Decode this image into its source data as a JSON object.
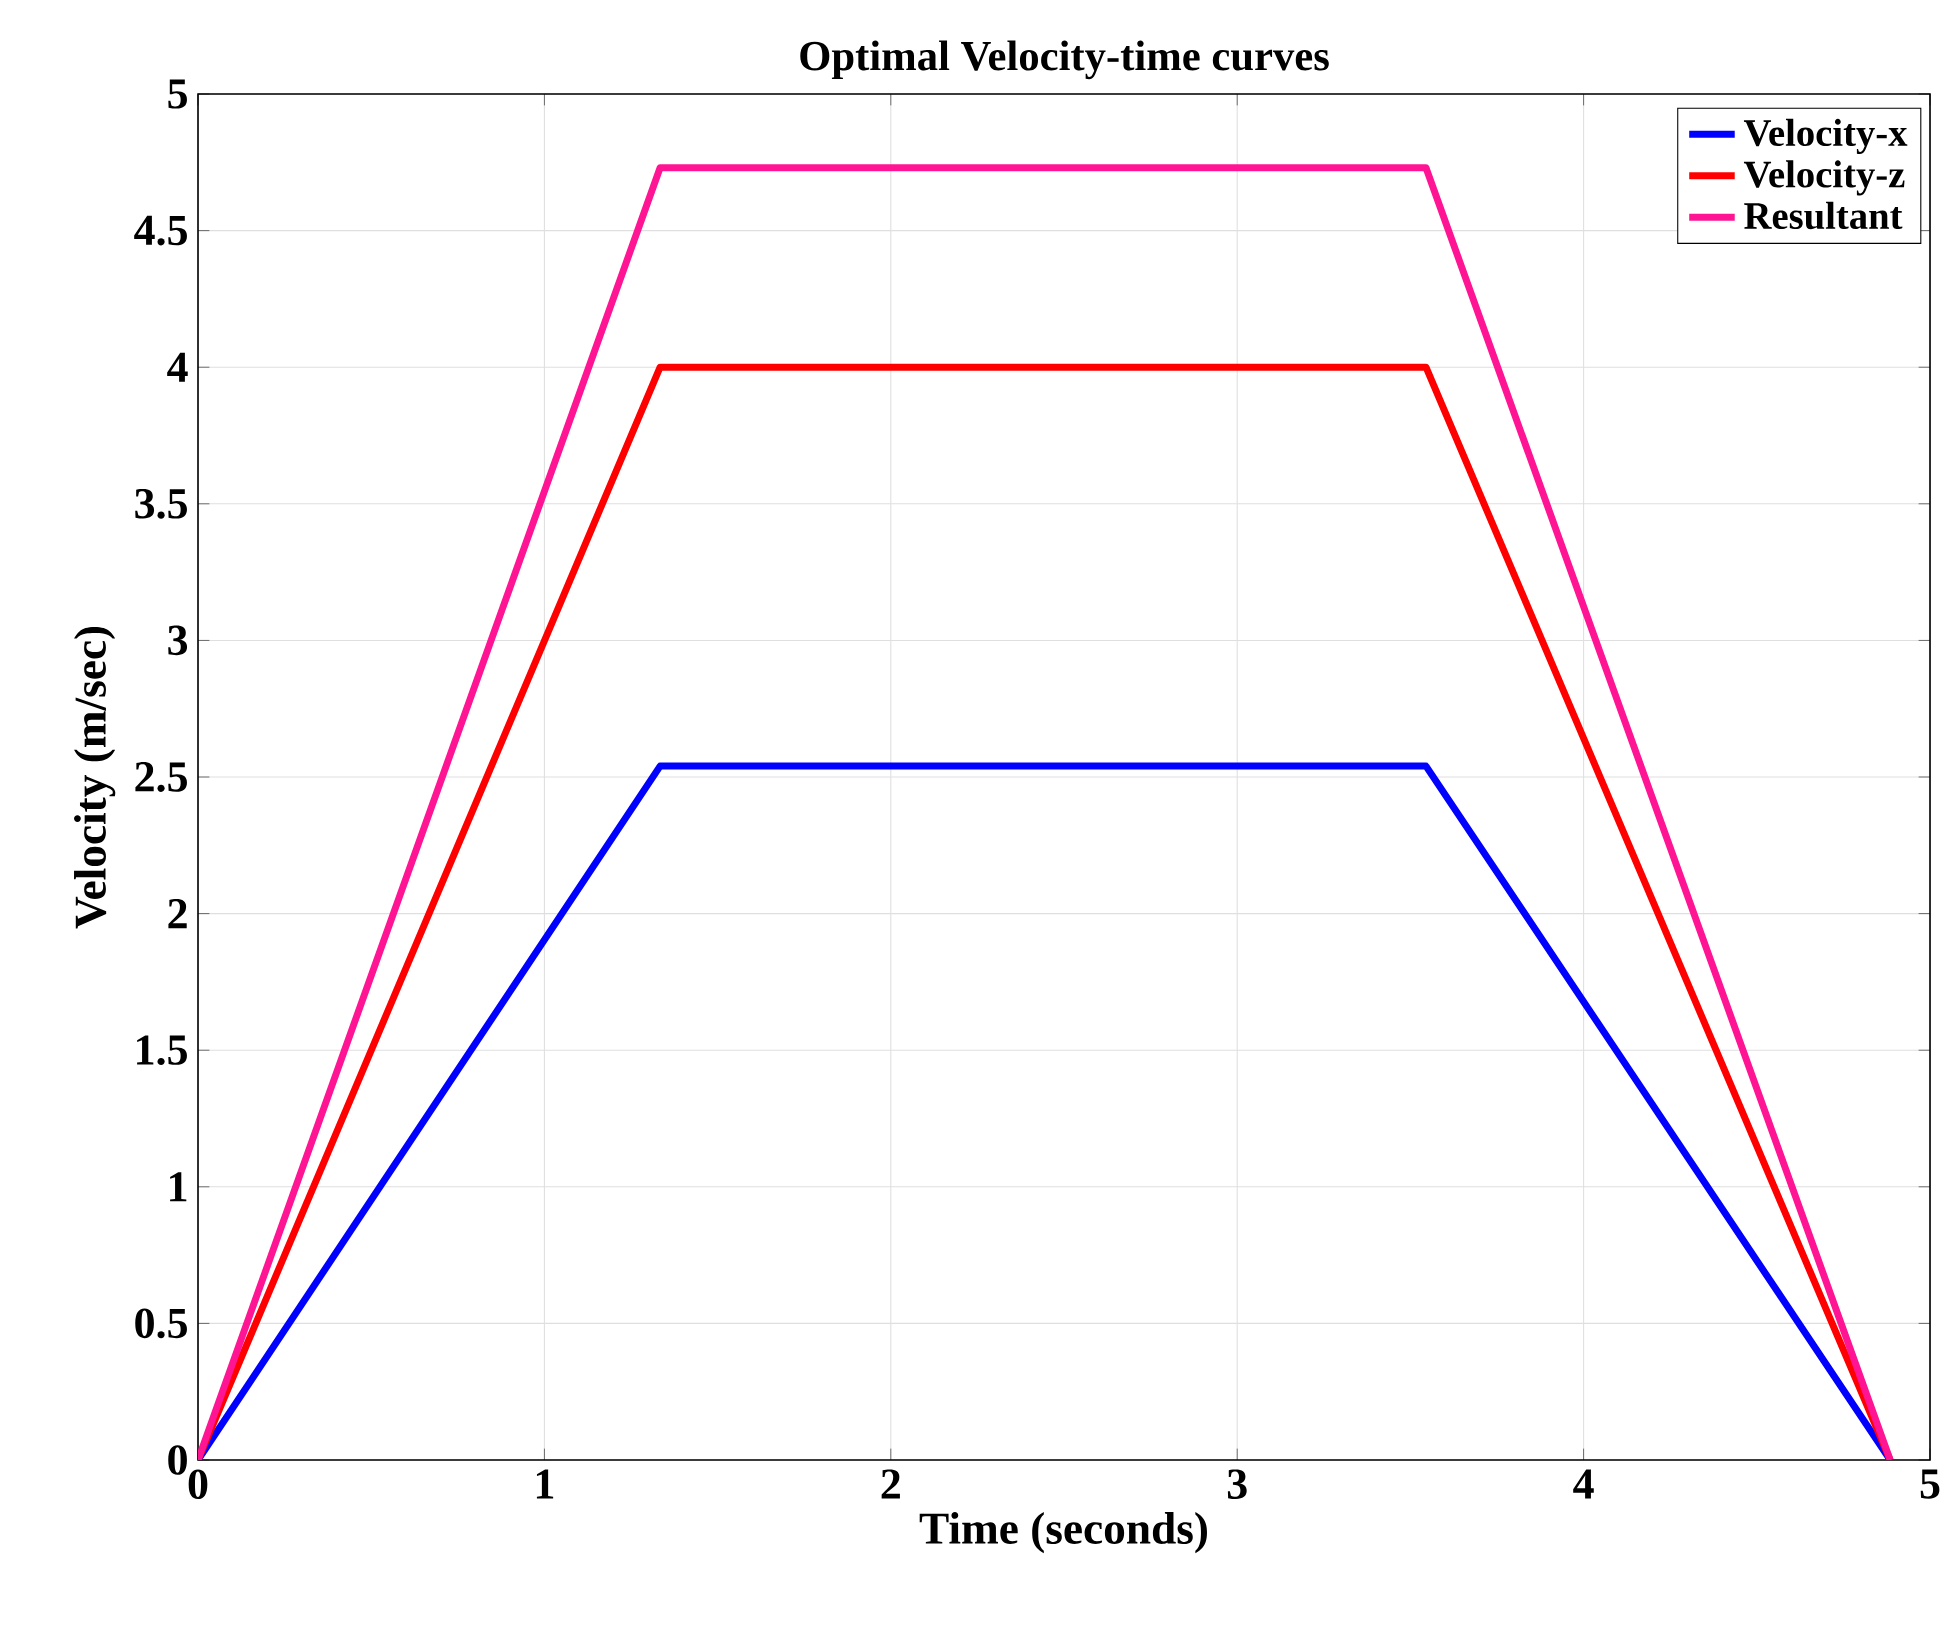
{
  "chart_data": {
    "type": "line",
    "title": "Optimal Velocity-time curves",
    "xlabel": "Time (seconds)",
    "ylabel": "Velocity (m/sec)",
    "x": [
      0,
      1.334,
      3.545,
      4.885
    ],
    "series": [
      {
        "name": "Velocity-x",
        "color": "#0000ff",
        "values": [
          0,
          2.54,
          2.54,
          0
        ]
      },
      {
        "name": "Velocity-z",
        "color": "#ff0000",
        "values": [
          0,
          4.0,
          4.0,
          0
        ]
      },
      {
        "name": "Resultant",
        "color": "#ff1493",
        "values": [
          0,
          4.73,
          4.73,
          0
        ]
      }
    ],
    "xlim": [
      0,
      5
    ],
    "ylim": [
      0,
      5
    ],
    "xticks": [
      0,
      1,
      2,
      3,
      4,
      5
    ],
    "yticks": [
      0,
      0.5,
      1,
      1.5,
      2,
      2.5,
      3,
      3.5,
      4,
      4.5,
      5
    ],
    "grid": true,
    "legend": "top right",
    "marker": "none",
    "line_style": "solid"
  }
}
